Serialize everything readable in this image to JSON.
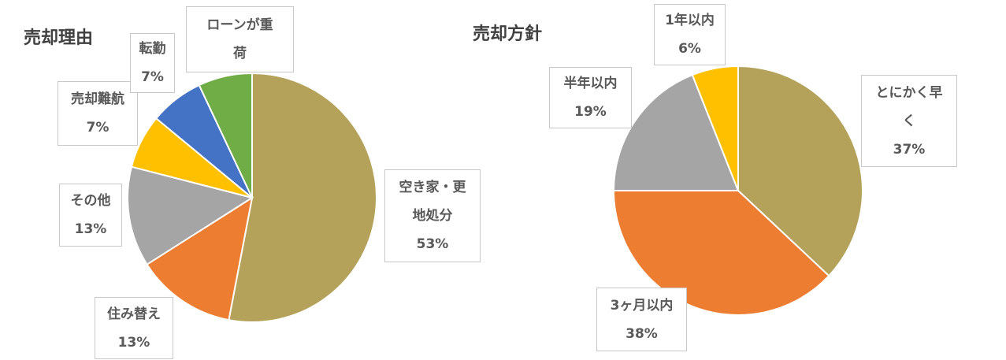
{
  "chart_data": [
    {
      "type": "pie",
      "title": "売却理由",
      "categories": [
        "空き家・更地処分",
        "住み替え",
        "その他",
        "売却難航",
        "転勤",
        "ローンが重荷"
      ],
      "values": [
        53,
        13,
        13,
        7,
        7,
        7
      ],
      "value_labels": [
        "53%",
        "13%",
        "13%",
        "7%",
        "7%",
        null
      ],
      "colors": [
        "#b5a25a",
        "#ed7d31",
        "#a5a5a5",
        "#ffc000",
        "#4472c4",
        "#70ad47"
      ]
    },
    {
      "type": "pie",
      "title": "売却方針",
      "categories": [
        "とにかく早く",
        "3ヶ月以内",
        "半年以内",
        "1年以内"
      ],
      "values": [
        37,
        38,
        19,
        6
      ],
      "value_labels": [
        "37%",
        "38%",
        "19%",
        "6%"
      ],
      "colors": [
        "#b5a25a",
        "#ed7d31",
        "#a5a5a5",
        "#ffc000"
      ]
    }
  ]
}
